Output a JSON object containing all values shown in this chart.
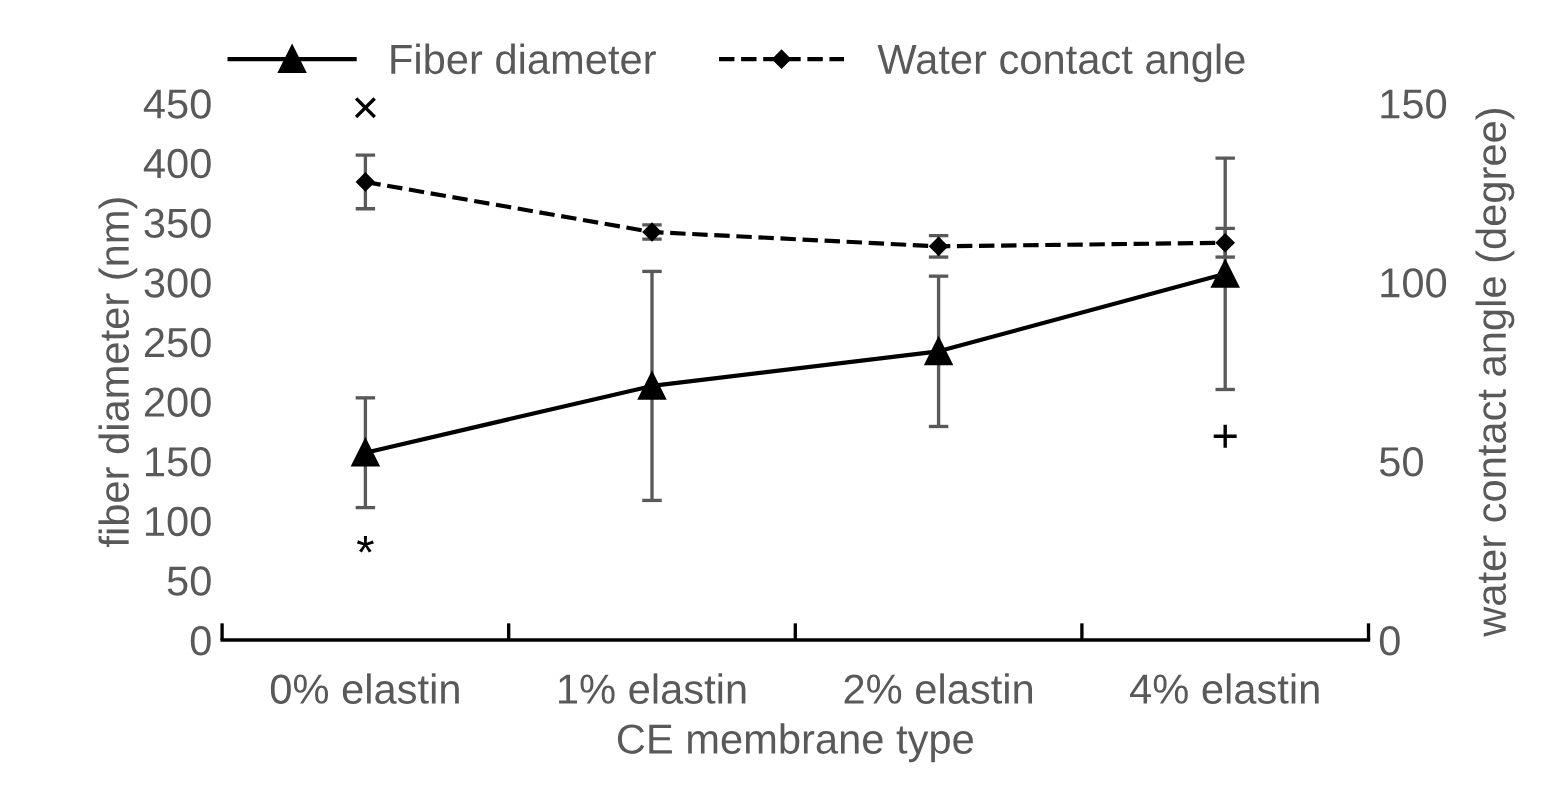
{
  "chart_data": {
    "type": "line",
    "xlabel": "CE membrane type",
    "ylabel": "fiber diameter (nm)",
    "y2label": "water contact angle (degree)",
    "categories": [
      "0% elastin",
      "1% elastin",
      "2% elastin",
      "4% elastin"
    ],
    "series": [
      {
        "name": "Fiber diameter",
        "color": "#000000",
        "values": [
          157,
          213,
          242,
          307
        ],
        "errors": [
          46,
          96,
          63,
          97
        ],
        "marker": "triangle",
        "line_style": "solid"
      },
      {
        "name": "Water contact angle",
        "color": "#000000",
        "values": [
          128,
          114,
          110,
          111
        ],
        "errors": [
          7.5,
          2,
          3,
          4
        ],
        "marker": "diamond",
        "line_style": "dashed",
        "axis": "y2"
      }
    ],
    "ylim": [
      0,
      450
    ],
    "yticks": [
      0,
      50,
      100,
      150,
      200,
      250,
      300,
      350,
      400,
      450
    ],
    "y2lim": [
      0,
      150
    ],
    "y2ticks": [
      0,
      50,
      100,
      150
    ],
    "annotations": [
      "×",
      "*",
      "+"
    ],
    "legend": "top",
    "grid": false
  }
}
